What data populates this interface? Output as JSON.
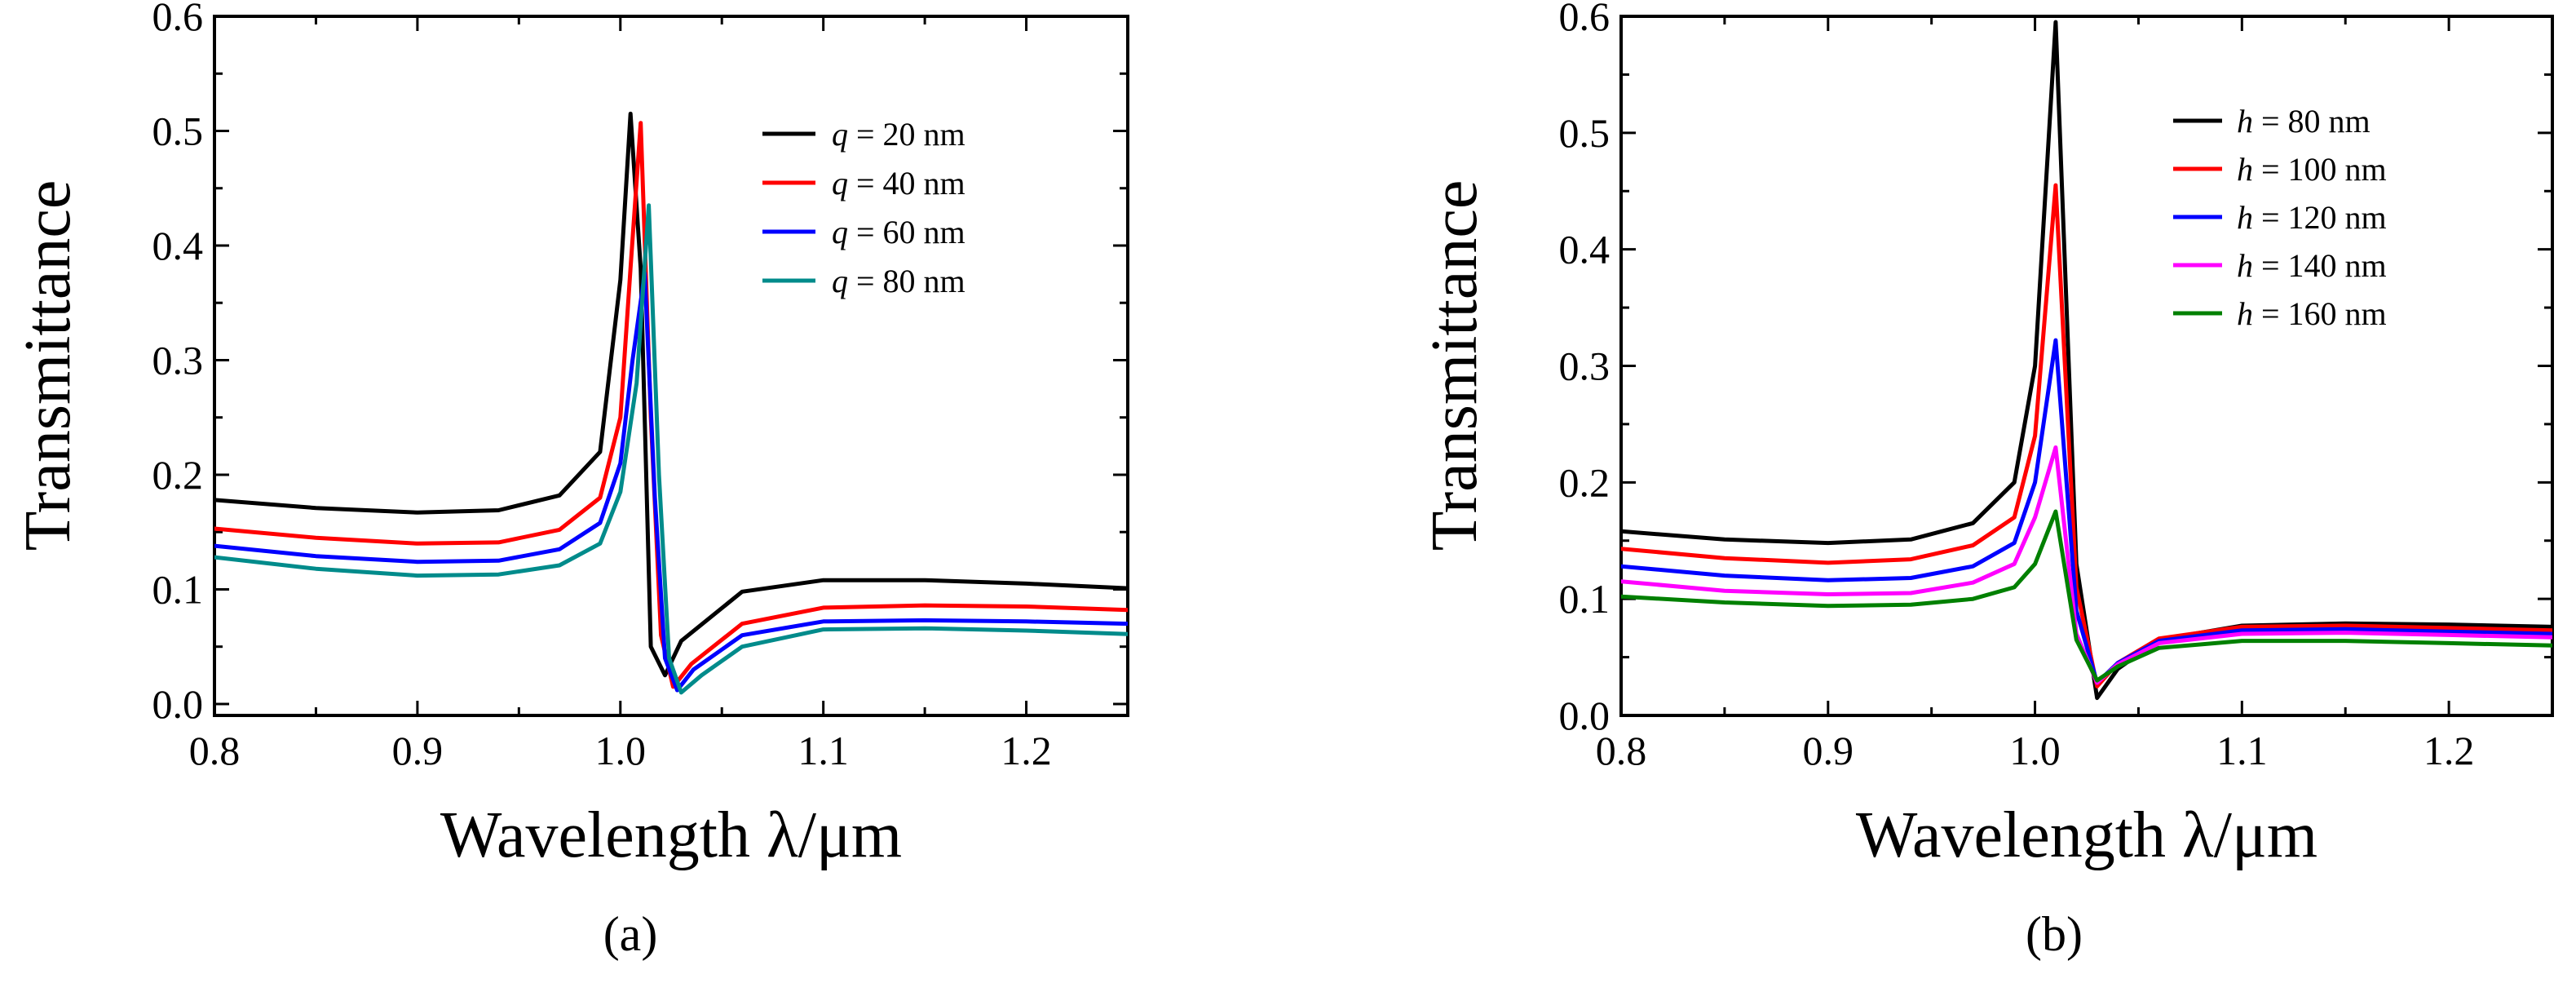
{
  "figure": {
    "panels": [
      "(a)",
      "(b)"
    ]
  },
  "chart_data": [
    {
      "type": "line",
      "panel_label": "(a)",
      "xlabel": "Wavelength λ/μm",
      "ylabel": "Transmittance",
      "xlim": [
        0.8,
        1.25
      ],
      "ylim": [
        -0.01,
        0.6
      ],
      "xticks": [
        0.8,
        0.9,
        1.0,
        1.1,
        1.2
      ],
      "xtick_labels": [
        "0.8",
        "0.9",
        "1.0",
        "1.1",
        "1.2"
      ],
      "yticks": [
        0.0,
        0.1,
        0.2,
        0.3,
        0.4,
        0.5,
        0.6
      ],
      "ytick_labels": [
        "0.0",
        "0.1",
        "0.2",
        "0.3",
        "0.4",
        "0.5",
        "0.6"
      ],
      "legend_position": "top-right",
      "grid": false,
      "series": [
        {
          "name": "q = 20 nm",
          "var": "q",
          "rest": " = 20 nm",
          "color": "#000000",
          "x": [
            0.8,
            0.85,
            0.9,
            0.94,
            0.97,
            0.99,
            1.0,
            1.005,
            1.01,
            1.015,
            1.022,
            1.03,
            1.06,
            1.1,
            1.15,
            1.2,
            1.25
          ],
          "y": [
            0.178,
            0.171,
            0.167,
            0.169,
            0.182,
            0.22,
            0.37,
            0.515,
            0.38,
            0.05,
            0.025,
            0.055,
            0.098,
            0.108,
            0.108,
            0.105,
            0.101
          ]
        },
        {
          "name": "q = 40 nm",
          "var": "q",
          "rest": " = 40 nm",
          "color": "#ff0000",
          "x": [
            0.8,
            0.85,
            0.9,
            0.94,
            0.97,
            0.99,
            1.0,
            1.005,
            1.01,
            1.015,
            1.02,
            1.026,
            1.035,
            1.06,
            1.1,
            1.15,
            1.2,
            1.25
          ],
          "y": [
            0.153,
            0.145,
            0.14,
            0.141,
            0.152,
            0.18,
            0.25,
            0.38,
            0.507,
            0.25,
            0.06,
            0.015,
            0.035,
            0.07,
            0.084,
            0.086,
            0.085,
            0.082
          ]
        },
        {
          "name": "q = 60 nm",
          "var": "q",
          "rest": " = 60 nm",
          "color": "#0000ff",
          "x": [
            0.8,
            0.85,
            0.9,
            0.94,
            0.97,
            0.99,
            1.0,
            1.006,
            1.012,
            1.017,
            1.022,
            1.028,
            1.036,
            1.06,
            1.1,
            1.15,
            1.2,
            1.25
          ],
          "y": [
            0.138,
            0.129,
            0.124,
            0.125,
            0.135,
            0.158,
            0.21,
            0.3,
            0.376,
            0.18,
            0.04,
            0.012,
            0.03,
            0.06,
            0.072,
            0.073,
            0.072,
            0.07
          ]
        },
        {
          "name": "q = 80 nm",
          "var": "q",
          "rest": " = 80 nm",
          "color": "#008b8b",
          "x": [
            0.8,
            0.85,
            0.9,
            0.94,
            0.97,
            0.99,
            1.0,
            1.008,
            1.014,
            1.019,
            1.024,
            1.03,
            1.04,
            1.06,
            1.1,
            1.15,
            1.2,
            1.25
          ],
          "y": [
            0.128,
            0.118,
            0.112,
            0.113,
            0.121,
            0.14,
            0.185,
            0.28,
            0.435,
            0.2,
            0.04,
            0.01,
            0.025,
            0.05,
            0.065,
            0.066,
            0.064,
            0.061
          ]
        }
      ]
    },
    {
      "type": "line",
      "panel_label": "(b)",
      "xlabel": "Wavelength λ/μm",
      "ylabel": "Transmittance",
      "xlim": [
        0.8,
        1.25
      ],
      "ylim": [
        0.0,
        0.6
      ],
      "xticks": [
        0.8,
        0.9,
        1.0,
        1.1,
        1.2
      ],
      "xtick_labels": [
        "0.8",
        "0.9",
        "1.0",
        "1.1",
        "1.2"
      ],
      "yticks": [
        0.0,
        0.1,
        0.2,
        0.3,
        0.4,
        0.5,
        0.6
      ],
      "ytick_labels": [
        "0.0",
        "0.1",
        "0.2",
        "0.3",
        "0.4",
        "0.5",
        "0.6"
      ],
      "legend_position": "top-right",
      "grid": false,
      "series": [
        {
          "name": "h = 80 nm",
          "var": "h",
          "rest": " = 80 nm",
          "color": "#000000",
          "x": [
            0.8,
            0.85,
            0.9,
            0.94,
            0.97,
            0.99,
            1.0,
            1.01,
            1.02,
            1.03,
            1.04,
            1.06,
            1.1,
            1.15,
            1.2,
            1.25
          ],
          "y": [
            0.158,
            0.151,
            0.148,
            0.151,
            0.165,
            0.2,
            0.3,
            0.595,
            0.13,
            0.015,
            0.04,
            0.065,
            0.077,
            0.079,
            0.078,
            0.076
          ]
        },
        {
          "name": "h = 100 nm",
          "var": "h",
          "rest": " = 100 nm",
          "color": "#ff0000",
          "x": [
            0.8,
            0.85,
            0.9,
            0.94,
            0.97,
            0.99,
            1.0,
            1.01,
            1.02,
            1.03,
            1.04,
            1.06,
            1.1,
            1.15,
            1.2,
            1.25
          ],
          "y": [
            0.143,
            0.135,
            0.131,
            0.134,
            0.146,
            0.17,
            0.24,
            0.455,
            0.11,
            0.025,
            0.045,
            0.066,
            0.076,
            0.077,
            0.075,
            0.073
          ]
        },
        {
          "name": "h = 120 nm",
          "var": "h",
          "rest": " = 120 nm",
          "color": "#0000ff",
          "x": [
            0.8,
            0.85,
            0.9,
            0.94,
            0.97,
            0.99,
            1.0,
            1.01,
            1.02,
            1.03,
            1.04,
            1.06,
            1.1,
            1.15,
            1.2,
            1.25
          ],
          "y": [
            0.128,
            0.12,
            0.116,
            0.118,
            0.128,
            0.148,
            0.2,
            0.322,
            0.09,
            0.028,
            0.045,
            0.064,
            0.073,
            0.074,
            0.072,
            0.07
          ]
        },
        {
          "name": "h = 140 nm",
          "var": "h",
          "rest": " = 140 nm",
          "color": "#ff00ff",
          "x": [
            0.8,
            0.85,
            0.9,
            0.94,
            0.97,
            0.99,
            1.0,
            1.01,
            1.02,
            1.03,
            1.04,
            1.06,
            1.1,
            1.15,
            1.2,
            1.25
          ],
          "y": [
            0.115,
            0.107,
            0.104,
            0.105,
            0.114,
            0.13,
            0.17,
            0.23,
            0.07,
            0.028,
            0.044,
            0.062,
            0.07,
            0.071,
            0.069,
            0.067
          ]
        },
        {
          "name": "h = 160 nm",
          "var": "h",
          "rest": " = 160 nm",
          "color": "#008000",
          "x": [
            0.8,
            0.85,
            0.9,
            0.94,
            0.97,
            0.99,
            1.0,
            1.01,
            1.02,
            1.03,
            1.04,
            1.06,
            1.1,
            1.15,
            1.2,
            1.25
          ],
          "y": [
            0.102,
            0.097,
            0.094,
            0.095,
            0.1,
            0.11,
            0.13,
            0.175,
            0.065,
            0.03,
            0.042,
            0.058,
            0.064,
            0.064,
            0.062,
            0.06
          ]
        }
      ]
    }
  ]
}
